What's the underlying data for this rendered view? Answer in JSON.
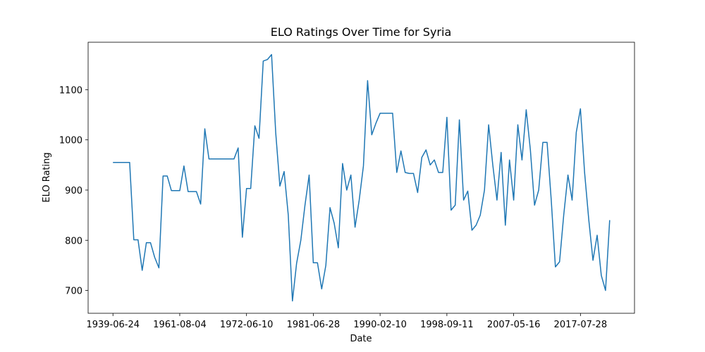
{
  "chart_data": {
    "type": "line",
    "title": "ELO Ratings Over Time for Syria",
    "x_label": "Date",
    "y_label": "ELO Rating",
    "color": "#1f77b4",
    "categories": [
      "1939-06-24",
      null,
      null,
      null,
      null,
      null,
      null,
      null,
      null,
      null,
      null,
      null,
      null,
      null,
      null,
      null,
      "1961-08-04",
      null,
      null,
      null,
      null,
      null,
      null,
      null,
      null,
      null,
      null,
      null,
      null,
      null,
      null,
      null,
      "1972-06-10",
      null,
      null,
      null,
      null,
      null,
      null,
      null,
      null,
      null,
      null,
      null,
      null,
      null,
      null,
      null,
      "1981-06-28",
      null,
      null,
      null,
      null,
      null,
      null,
      null,
      null,
      null,
      null,
      null,
      null,
      null,
      null,
      null,
      "1990-02-10",
      null,
      null,
      null,
      null,
      null,
      null,
      null,
      null,
      null,
      null,
      null,
      null,
      null,
      null,
      null,
      "1998-09-11",
      null,
      null,
      null,
      null,
      null,
      null,
      null,
      null,
      null,
      null,
      null,
      null,
      null,
      null,
      null,
      "2007-05-16",
      null,
      null,
      null,
      null,
      null,
      null,
      null,
      null,
      null,
      null,
      null,
      null,
      null,
      null,
      null,
      "2017-07-28",
      null,
      null,
      null,
      null,
      null,
      null,
      null
    ],
    "values": [
      955,
      955,
      955,
      955,
      955,
      801,
      801,
      740,
      795,
      795,
      766,
      745,
      928,
      928,
      899,
      899,
      899,
      948,
      897,
      897,
      897,
      872,
      1022,
      962,
      962,
      962,
      962,
      962,
      962,
      962,
      984,
      806,
      903,
      903,
      1028,
      1003,
      1157,
      1160,
      1170,
      1014,
      908,
      937,
      850,
      679,
      754,
      800,
      870,
      930,
      755,
      755,
      703,
      750,
      865,
      834,
      785,
      953,
      900,
      930,
      826,
      880,
      948,
      1118,
      1010,
      1033,
      1053,
      1053,
      1053,
      1053,
      935,
      978,
      935,
      933,
      933,
      895,
      965,
      980,
      950,
      960,
      935,
      935,
      1045,
      860,
      870,
      1040,
      880,
      898,
      820,
      830,
      850,
      900,
      1030,
      950,
      880,
      975,
      830,
      960,
      880,
      1030,
      960,
      1060,
      980,
      870,
      900,
      995,
      995,
      880,
      747,
      757,
      850,
      930,
      880,
      1015,
      1062,
      935,
      840,
      760,
      810,
      730,
      700,
      840
    ],
    "ylim": [
      654.5,
      1194.5
    ],
    "yticks": [
      700,
      800,
      900,
      1000,
      1100
    ]
  }
}
